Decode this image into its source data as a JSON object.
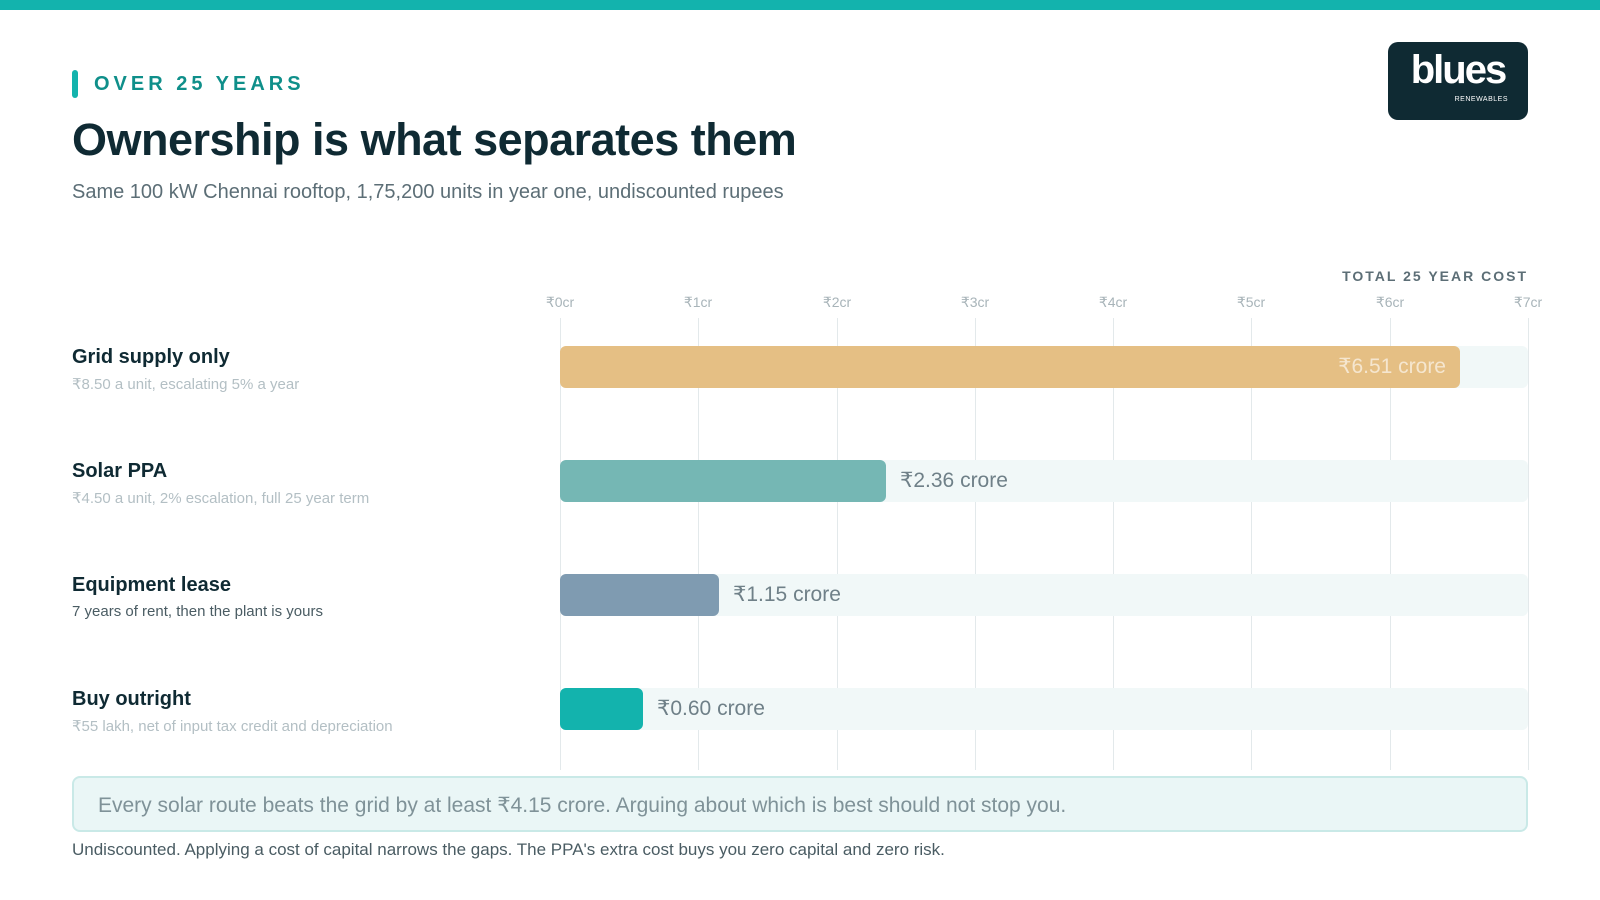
{
  "header": {
    "eyebrow": "OVER 25 YEARS",
    "title": "Ownership is what separates them",
    "subtitle": "Same 100 kW Chennai rooftop, 1,75,200 units in year one, undiscounted rupees"
  },
  "logo": {
    "word": "blues",
    "sub": "RENEWABLES"
  },
  "chart_data": {
    "type": "bar",
    "orientation": "horizontal",
    "axis_caption": "TOTAL 25 YEAR COST",
    "unit": "crore rupees",
    "xlim": [
      0,
      7
    ],
    "ticks": [
      {
        "value": 0,
        "label": "₹0cr"
      },
      {
        "value": 1,
        "label": "₹1cr"
      },
      {
        "value": 2,
        "label": "₹2cr"
      },
      {
        "value": 3,
        "label": "₹3cr"
      },
      {
        "value": 4,
        "label": "₹4cr"
      },
      {
        "value": 5,
        "label": "₹5cr"
      },
      {
        "value": 6,
        "label": "₹6cr"
      },
      {
        "value": 7,
        "label": "₹7cr"
      }
    ],
    "grid": true,
    "categories": [
      "Grid supply only",
      "Solar PPA",
      "Equipment lease",
      "Buy outright"
    ],
    "descriptions": [
      "₹8.50 a unit, escalating 5% a year",
      "₹4.50 a unit, 2% escalation, full 25 year term",
      "7 years of rent, then the plant is yours",
      "₹55 lakh, net of input tax credit and depreciation"
    ],
    "values": [
      6.51,
      2.36,
      1.15,
      0.6
    ],
    "value_labels": [
      "₹6.51 crore",
      "₹2.36 crore",
      "₹1.15 crore",
      "₹0.60 crore"
    ],
    "colors": [
      "#e5bf84",
      "#75b7b4",
      "#7f9bb1",
      "#13b3ad"
    ]
  },
  "callout": "Every solar route beats the grid by at least ₹4.15 crore. Arguing about which is best should not stop you.",
  "footnote": "Undiscounted. Applying a cost of capital narrows the gaps. The PPA's extra cost buys you zero capital and zero risk.",
  "colors": {
    "accent": "#13b3ad",
    "ink": "#0f2a33",
    "muted": "#5c6e76"
  }
}
